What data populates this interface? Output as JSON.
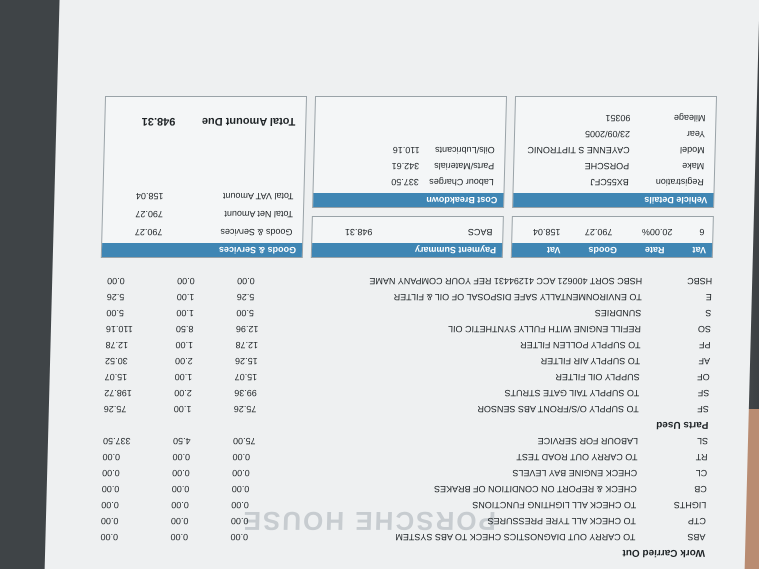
{
  "work_carried_out": {
    "title": "Work Carried Out",
    "rows": [
      {
        "code": "ABS",
        "desc": "TO CARRY OUT DIAGNOSTICS CHECK TO ABS SYSTEM",
        "unit": "0.00",
        "qty": "0.00",
        "price": "0.00",
        "total": "0.00"
      },
      {
        "code": "CTP",
        "desc": "TO CHECK ALL TYRE PRESSURES",
        "unit": "0.00",
        "qty": "0.00",
        "price": "0.00",
        "total": "0.00"
      },
      {
        "code": "LIGHTS",
        "desc": "TO CHECK ALL LIGHTING FUNCTIONS",
        "unit": "0.00",
        "qty": "0.00",
        "price": "0.00",
        "total": "0.00"
      },
      {
        "code": "CB",
        "desc": "CHECK & REPORT ON CONDITION OF BRAKES",
        "unit": "0.00",
        "qty": "0.00",
        "price": "0.00",
        "total": "0.00"
      },
      {
        "code": "CL",
        "desc": "CHECK ENGINE BAY LEVELS",
        "unit": "0.00",
        "qty": "0.00",
        "price": "0.00",
        "total": "0.00"
      },
      {
        "code": "RT",
        "desc": "TO CARRY OUT ROAD TEST",
        "unit": "0.00",
        "qty": "0.00",
        "price": "0.00",
        "total": "0.00"
      },
      {
        "code": "SL",
        "desc": "LABOUR FOR SERVICE",
        "unit": "75.00",
        "qty": "4.50",
        "price": "75.00",
        "total": "337.50"
      }
    ]
  },
  "parts_used": {
    "title": "Parts Used",
    "rows": [
      {
        "code": "SF",
        "desc": "TO SUPPLY O/S/FRONT ABS SENSOR",
        "unit": "75.26",
        "qty": "1.00",
        "price": "75.26",
        "total": "75.26"
      },
      {
        "code": "SF",
        "desc": "TO SUPPLY TAIL GATE STRUTS",
        "unit": "99.36",
        "qty": "2.00",
        "price": "99.36",
        "total": "198.72"
      },
      {
        "code": "OF",
        "desc": "SUPPLY OIL FILTER",
        "unit": "15.07",
        "qty": "1.00",
        "price": "15.07",
        "total": "15.07"
      },
      {
        "code": "AF",
        "desc": "TO SUPPLY AIR FILTER",
        "unit": "15.26",
        "qty": "2.00",
        "price": "15.26",
        "total": "30.52"
      },
      {
        "code": "PF",
        "desc": "TO SUPPLY POLLEN FILTER",
        "unit": "12.78",
        "qty": "1.00",
        "price": "12.78",
        "total": "12.78"
      },
      {
        "code": "SO",
        "desc": "REFILL ENGINE WITH FULLY SYNTHETIC OIL",
        "unit": "12.96",
        "qty": "8.50",
        "price": "12.96",
        "total": "110.16"
      },
      {
        "code": "S",
        "desc": "SUNDRIES",
        "unit": "5.00",
        "qty": "1.00",
        "price": "5.00",
        "total": "5.00"
      },
      {
        "code": "E",
        "desc": "TO ENVIRONMENTALLY SAFE DISPOSAL OF OIL & FILTER",
        "unit": "5.26",
        "qty": "1.00",
        "price": "5.26",
        "total": "5.26"
      },
      {
        "code": "HSBC",
        "desc": "HSBC SORT 400621 ACC 41294431 REF YOUR COMPANY NAME",
        "unit": "0.00",
        "qty": "0.00",
        "price": "0.00",
        "total": "0.00"
      }
    ]
  },
  "vat_summary": {
    "headers": [
      "Vat",
      "Rate",
      "Goods",
      "Vat"
    ],
    "row": [
      "6",
      "20.00%",
      "790.27",
      "158.04"
    ]
  },
  "payment_summary": {
    "title": "Payment Summary",
    "method": "BACS",
    "amount": "948.31"
  },
  "goods_services": {
    "title": "Goods & Services",
    "goods_label": "Goods & Services",
    "goods_value": "790.27",
    "net_label": "Total Net Amount",
    "net_value": "790.27",
    "vat_label": "Total VAT Amount",
    "vat_value": "158.04",
    "due_label": "Total Amount Due",
    "due_value": "948.31"
  },
  "vehicle_details": {
    "title": "Vehicle Details",
    "items": [
      {
        "label": "Registration",
        "value": "BX55CFJ"
      },
      {
        "label": "Make",
        "value": "PORSCHE"
      },
      {
        "label": "Model",
        "value": "CAYENNE S TIPTRONIC"
      },
      {
        "label": "Year",
        "value": "23/09/2005"
      },
      {
        "label": "Mileage",
        "value": "90351"
      }
    ]
  },
  "cost_breakdown": {
    "title": "Cost Breakdown",
    "items": [
      {
        "label": "Labour Charges",
        "value": "337.50"
      },
      {
        "label": "Parts/Materials",
        "value": "342.61"
      },
      {
        "label": "Oils/Lubricants",
        "value": "110.16"
      }
    ]
  }
}
